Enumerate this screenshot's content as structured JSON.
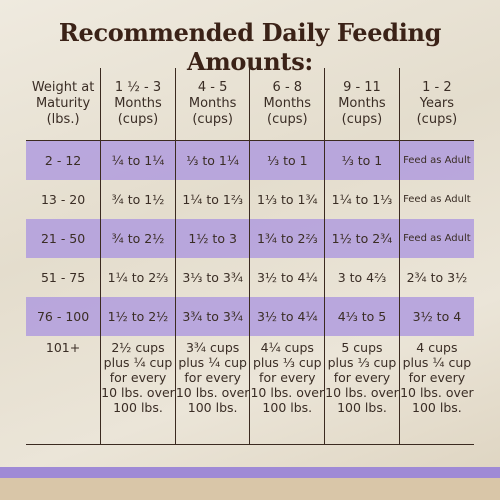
{
  "title": "Recommended Daily Feeding Amounts:",
  "table": {
    "header": [
      "Weight at\nMaturity\n(lbs.)",
      "1 ½ - 3\nMonths\n(cups)",
      "4 - 5\nMonths\n(cups)",
      "6 - 8\nMonths\n(cups)",
      "9 - 11\nMonths\n(cups)",
      "1 - 2\nYears\n(cups)"
    ],
    "rows": [
      [
        "2 - 12",
        "¼ to 1¼",
        "⅓ to 1¼",
        "⅓ to 1",
        "⅓ to 1",
        "Feed as Adult"
      ],
      [
        "13 - 20",
        "¾ to 1½",
        "1¼ to 1⅔",
        "1⅓ to 1¾",
        "1¼ to 1⅓",
        "Feed as Adult"
      ],
      [
        "21 - 50",
        "¾ to 2½",
        "1½ to 3",
        "1¾ to 2⅔",
        "1½ to 2¾",
        "Feed as Adult"
      ],
      [
        "51 - 75",
        "1¼ to 2⅔",
        "3⅓ to 3¾",
        "3½ to 4¼",
        "3 to 4⅔",
        "2¾ to 3½"
      ],
      [
        "76 - 100",
        "1½ to 2½",
        "3¾ to 3¾",
        "3½ to 4¼",
        "4⅓ to 5",
        "3½ to 4"
      ],
      [
        "101+",
        "2½ cups\nplus ¼ cup\nfor every\n10 lbs. over\n100 lbs.",
        "3¾ cups\nplus ¼ cup\nfor every\n10 lbs. over\n100 lbs.",
        "4¼ cups\nplus ⅓ cup\nfor every\n10 lbs. over\n100 lbs.",
        "5 cups\nplus ⅓ cup\nfor every\n10 lbs. over\n100 lbs.",
        "4 cups\nplus ¼ cup\nfor every\n10 lbs. over\n100 lbs."
      ]
    ]
  }
}
